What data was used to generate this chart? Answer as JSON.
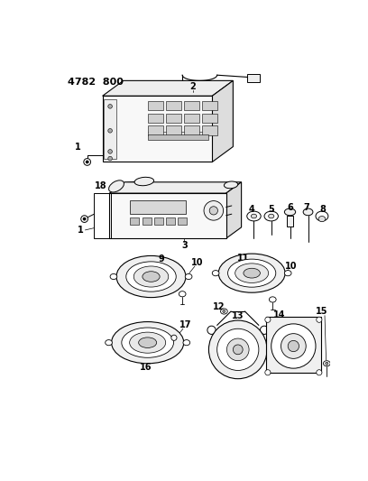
{
  "background_color": "#ffffff",
  "line_color": "#000000",
  "fig_width": 4.08,
  "fig_height": 5.33,
  "dpi": 100,
  "title": "4782  800"
}
